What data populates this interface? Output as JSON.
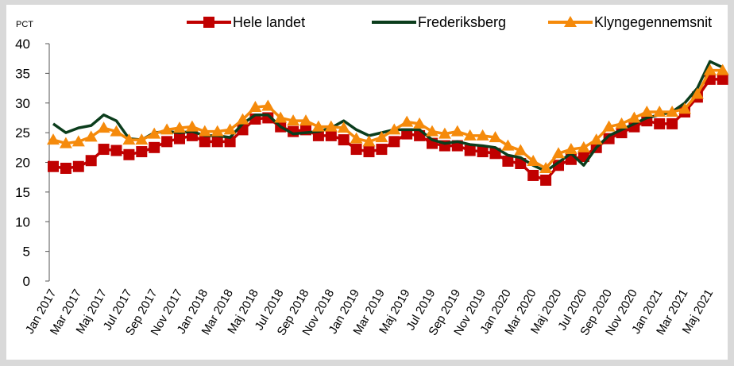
{
  "chart_data": {
    "type": "line",
    "unit_label": "PCT",
    "categories": [
      "Jan 2017",
      null,
      "Mar 2017",
      null,
      "Maj 2017",
      null,
      "Jul 2017",
      null,
      "Sep 2017",
      null,
      "Nov 2017",
      null,
      "Jan 2018",
      null,
      "Mar 2018",
      null,
      "Maj 2018",
      null,
      "Jul 2018",
      null,
      "Sep 2018",
      null,
      "Nov 2018",
      null,
      "Jan 2019",
      null,
      "Mar 2019",
      null,
      "Maj 2019",
      null,
      "Jul 2019",
      null,
      "Sep 2019",
      null,
      "Nov 2019",
      null,
      "Jan 2020",
      null,
      "Mar 2020",
      null,
      "Maj 2020",
      null,
      "Jul 2020",
      null,
      "Sep 2020",
      null,
      "Nov 2020",
      null,
      "Jan 2021",
      null,
      "Mar 2021",
      null,
      "Maj 2021",
      null
    ],
    "series": [
      {
        "name": "Hele landet",
        "color": "#c00000",
        "marker": "square",
        "values": [
          19.3,
          19.0,
          19.3,
          20.3,
          22.2,
          22.0,
          21.3,
          21.8,
          22.5,
          23.5,
          24.0,
          24.5,
          23.5,
          23.5,
          23.5,
          25.5,
          27.3,
          27.5,
          26.0,
          25.2,
          25.5,
          24.5,
          24.5,
          23.8,
          22.2,
          21.8,
          22.2,
          23.5,
          24.8,
          24.5,
          23.2,
          22.8,
          22.8,
          22.0,
          21.8,
          21.5,
          20.2,
          19.8,
          17.8,
          17.0,
          19.5,
          20.5,
          21.0,
          22.5,
          24.0,
          25.0,
          26.0,
          27.0,
          26.5,
          26.5,
          28.5,
          31.0,
          34.0,
          34.0
        ]
      },
      {
        "name": "Frederiksberg",
        "color": "#0b3d1c",
        "marker": "none",
        "values": [
          26.5,
          25.0,
          25.8,
          26.2,
          28.0,
          27.0,
          24.0,
          23.8,
          25.0,
          25.2,
          25.0,
          25.2,
          24.5,
          24.5,
          24.2,
          26.5,
          28.0,
          28.0,
          26.0,
          24.8,
          25.0,
          25.2,
          25.8,
          27.0,
          25.5,
          24.5,
          25.0,
          25.5,
          25.5,
          25.5,
          23.8,
          23.2,
          23.5,
          23.0,
          22.8,
          22.5,
          21.2,
          20.8,
          19.5,
          18.5,
          20.0,
          21.5,
          19.5,
          22.5,
          24.5,
          25.5,
          26.5,
          27.5,
          28.0,
          28.5,
          30.0,
          32.5,
          37.0,
          36.0
        ]
      },
      {
        "name": "Klyngegennemsnit",
        "color": "#f58a0b",
        "marker": "triangle",
        "values": [
          23.8,
          23.2,
          23.5,
          24.3,
          25.8,
          25.2,
          23.8,
          23.8,
          24.8,
          25.5,
          25.8,
          26.0,
          25.2,
          25.2,
          25.5,
          27.2,
          29.3,
          29.5,
          27.5,
          27.0,
          27.0,
          26.0,
          26.0,
          25.8,
          24.0,
          23.5,
          24.2,
          25.5,
          26.8,
          26.5,
          25.2,
          24.8,
          25.2,
          24.5,
          24.5,
          24.2,
          22.8,
          22.0,
          20.2,
          19.0,
          21.5,
          22.2,
          22.5,
          23.8,
          26.0,
          26.5,
          27.5,
          28.5,
          28.5,
          28.5,
          29.0,
          31.5,
          35.5,
          35.5
        ]
      }
    ],
    "ylim": [
      0,
      40
    ],
    "yticks": [
      0,
      5,
      10,
      15,
      20,
      25,
      30,
      35,
      40
    ],
    "grid": false,
    "legend": "top"
  }
}
